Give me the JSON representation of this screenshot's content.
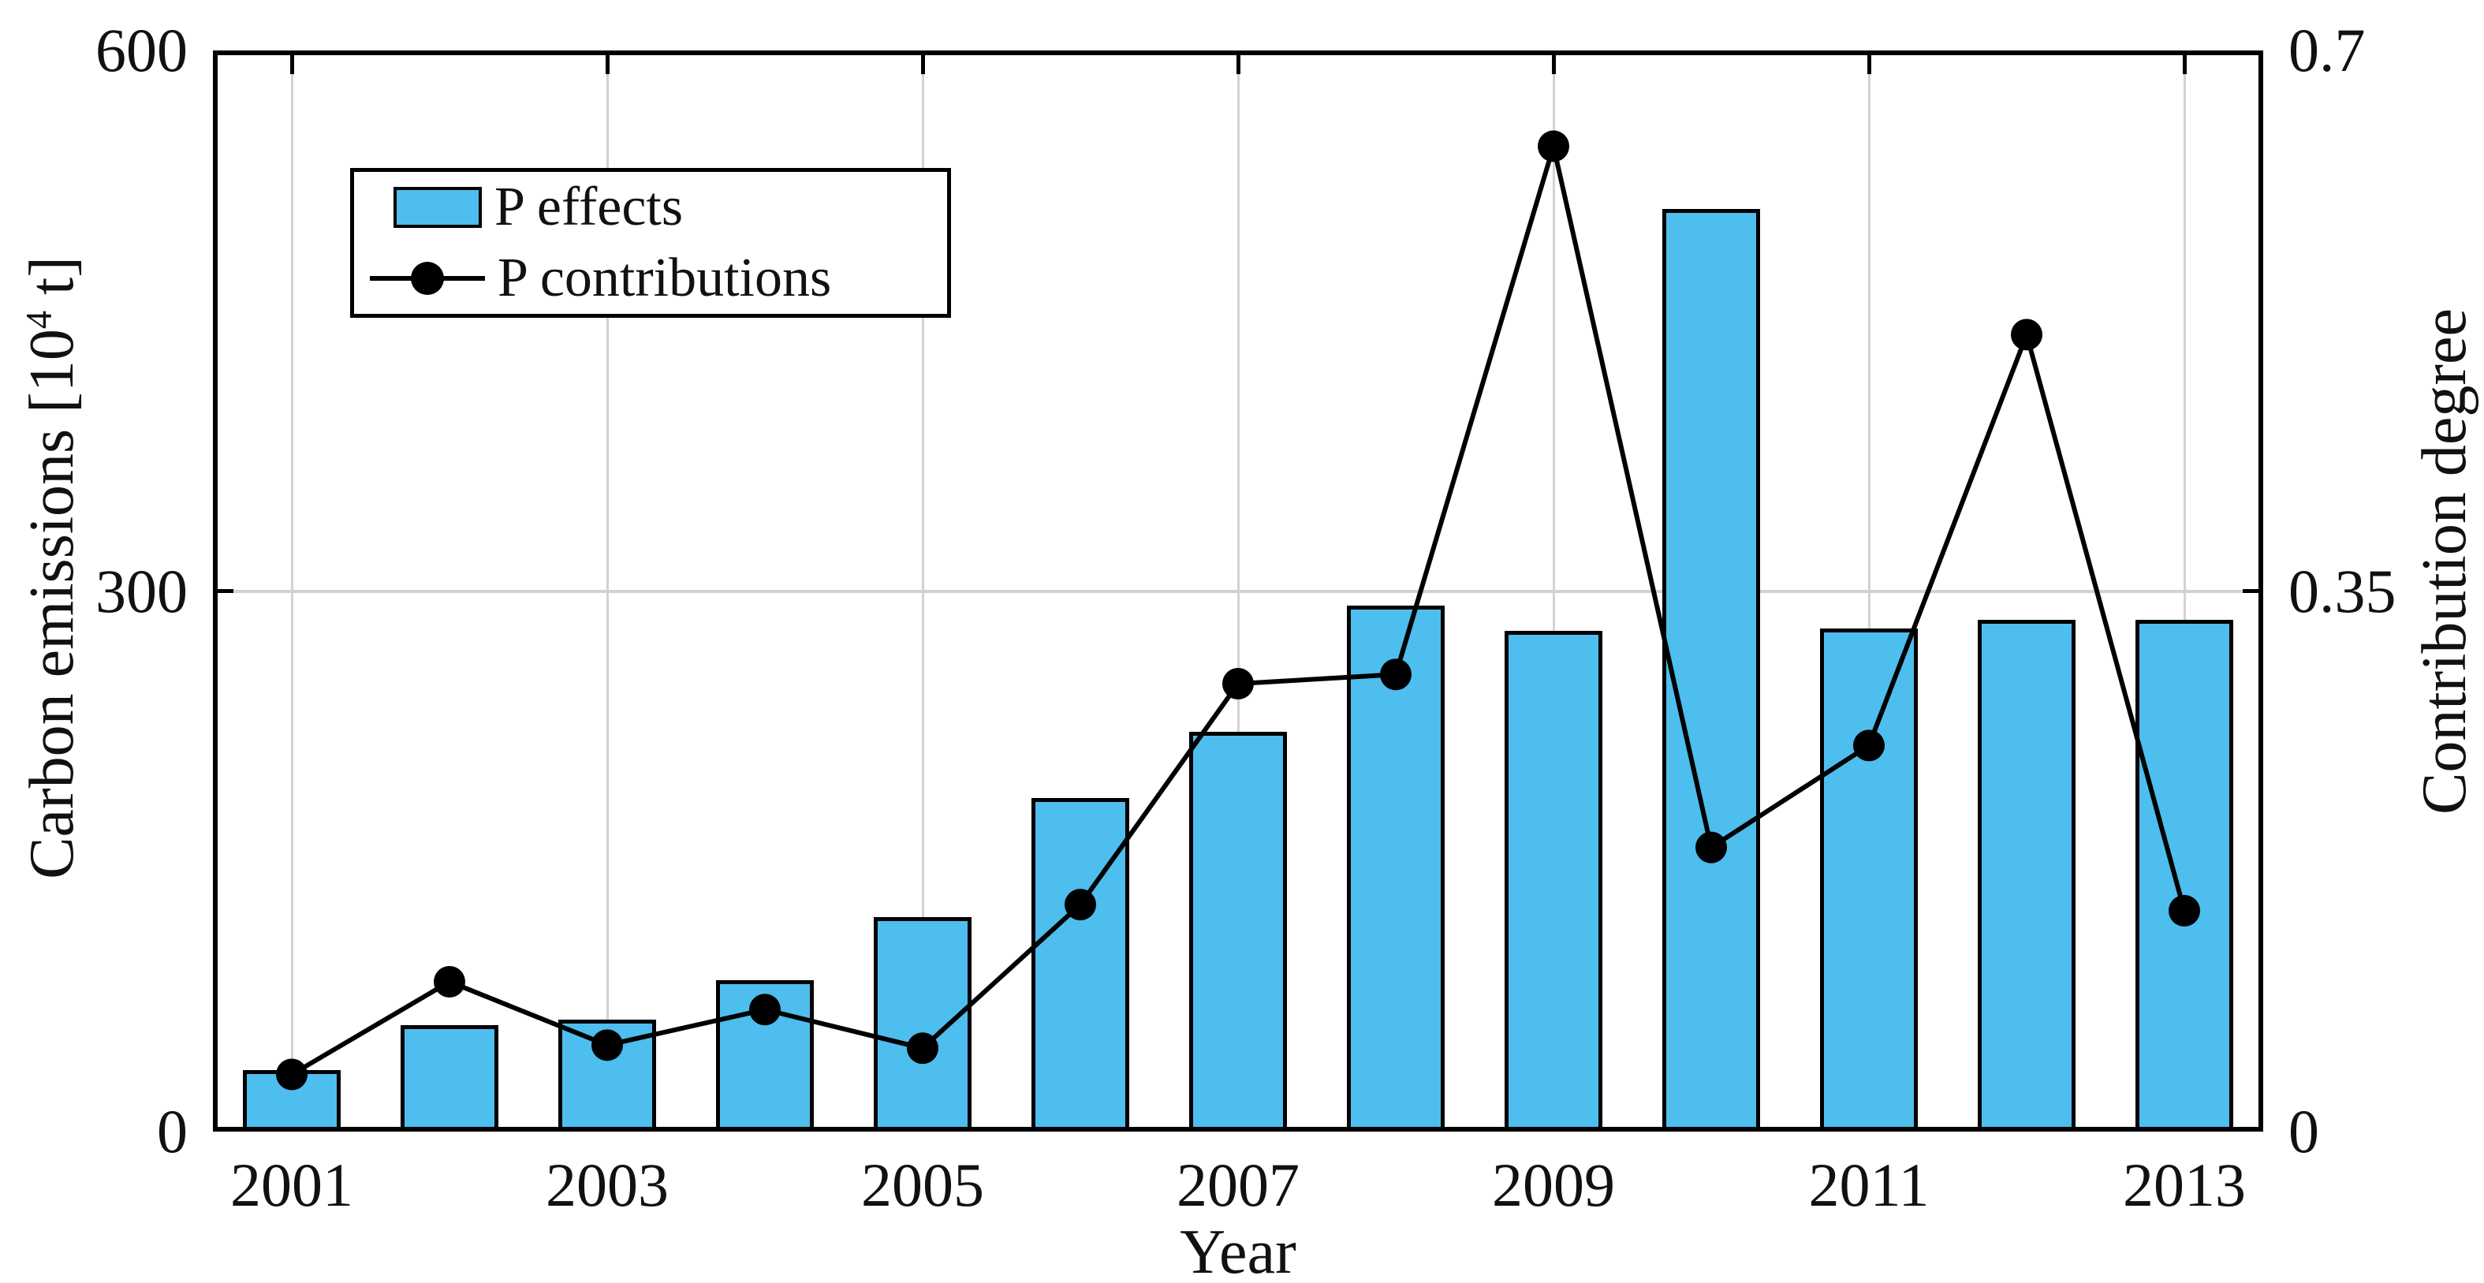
{
  "figure": {
    "background": "#ffffff",
    "text_color": "#111111"
  },
  "legend": {
    "position": "top-left-inside-plot",
    "items": [
      {
        "label": "P effects",
        "swatch": "bar",
        "color": "#4DBEEE"
      },
      {
        "label": "P contributions",
        "swatch": "line-with-dot",
        "color": "#000000"
      }
    ]
  },
  "chart_data": {
    "type": "bar",
    "subtype": "dual-axis bar + line combo",
    "categories": [
      2001,
      2002,
      2003,
      2004,
      2005,
      2006,
      2007,
      2008,
      2009,
      2010,
      2011,
      2012,
      2013
    ],
    "series": [
      {
        "name": "P effects",
        "chart": "bar",
        "axis": "left",
        "color": "#4DBEEE",
        "edge_color": "#000000",
        "values": [
          34,
          59,
          62,
          84,
          119,
          185,
          222,
          292,
          278,
          512,
          279,
          284,
          284
        ]
      },
      {
        "name": "P contributions",
        "chart": "line",
        "axis": "right",
        "color": "#000000",
        "marker": "filled-circle",
        "values": [
          0.037,
          0.097,
          0.056,
          0.079,
          0.054,
          0.147,
          0.29,
          0.296,
          0.638,
          0.184,
          0.25,
          0.516,
          0.143
        ]
      }
    ],
    "x_axis": {
      "label": "Year",
      "tick_years": [
        2001,
        2003,
        2005,
        2007,
        2009,
        2011,
        2013
      ],
      "tick_labels": [
        "2001",
        "2003",
        "2005",
        "2007",
        "2009",
        "2011",
        "2013"
      ]
    },
    "left_axis": {
      "label": "Carbon emissions [10^4 t]",
      "label_parts": {
        "pre": "Carbon emissions [10",
        "sup": "4",
        "post": " t]"
      },
      "ticks": [
        0,
        300,
        600
      ],
      "tick_labels": [
        "0",
        "300",
        "600"
      ],
      "range": [
        0,
        600
      ]
    },
    "right_axis": {
      "label": "Contribution degree",
      "ticks": [
        0,
        0.35,
        0.7
      ],
      "tick_labels": [
        "0",
        "0.35",
        "0.7"
      ],
      "range": [
        0,
        0.7
      ]
    },
    "grid": {
      "vertical_at_years": [
        2001,
        2003,
        2005,
        2007,
        2009,
        2011,
        2013
      ],
      "horizontal_at_left_value": 300,
      "color": "#d2d2d2"
    }
  }
}
